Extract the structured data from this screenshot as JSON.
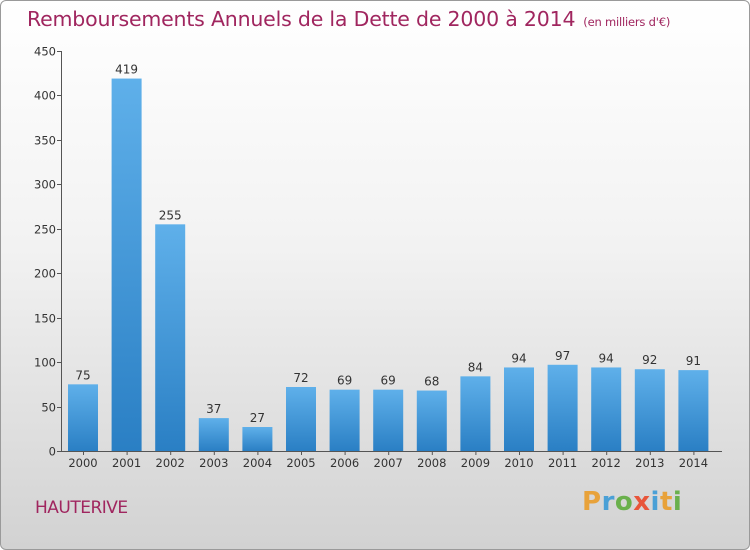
{
  "header": {
    "title": "Remboursements Annuels de la Dette de 2000 à 2014",
    "unit_note": "(en milliers d'€)"
  },
  "location": "HAUTERIVE",
  "logo": {
    "text": "Proxiti",
    "letter_colors": [
      "#e8a23a",
      "#4aa0d6",
      "#6ab04c",
      "#e8553a",
      "#4aa0d6",
      "#e8a23a",
      "#6ab04c"
    ]
  },
  "colors": {
    "title": "#a0265f",
    "bar_top": "#5fb0ea",
    "bar_bottom": "#2a7fc4"
  },
  "chart_data": {
    "type": "bar",
    "categories": [
      "2000",
      "2001",
      "2002",
      "2003",
      "2004",
      "2005",
      "2006",
      "2007",
      "2008",
      "2009",
      "2010",
      "2011",
      "2012",
      "2013",
      "2014"
    ],
    "values": [
      75,
      419,
      255,
      37,
      27,
      72,
      69,
      69,
      68,
      84,
      94,
      97,
      94,
      92,
      91
    ],
    "ylim": [
      0,
      450
    ],
    "yticks": [
      0,
      50,
      100,
      150,
      200,
      250,
      300,
      350,
      400,
      450
    ],
    "grid": false,
    "legend": "none"
  }
}
